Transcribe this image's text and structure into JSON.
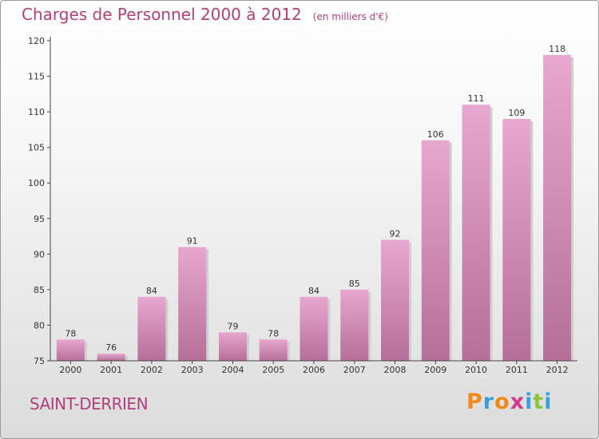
{
  "title": "Charges de Personnel 2000 à 2012",
  "subtitle": "(en milliers d'€)",
  "place": "SAINT-DERRIEN",
  "logo": {
    "letters": [
      "P",
      "r",
      "o",
      "x",
      "i",
      "t",
      "i"
    ],
    "colors": [
      "#f08a1c",
      "#3aa0dd",
      "#f08a1c",
      "#d23a8f",
      "#3aa0dd",
      "#8cc63e",
      "#3aa0dd"
    ]
  },
  "colors": {
    "bar_top": "#e8a7cf",
    "bar_bottom": "#b56f98",
    "title": "#b0407a"
  },
  "chart_data": {
    "type": "bar",
    "title": "Charges de Personnel 2000 à 2012",
    "subtitle": "(en milliers d'€)",
    "categories": [
      "2000",
      "2001",
      "2002",
      "2003",
      "2004",
      "2005",
      "2006",
      "2007",
      "2008",
      "2009",
      "2010",
      "2011",
      "2012"
    ],
    "values": [
      78,
      76,
      84,
      91,
      79,
      78,
      84,
      85,
      92,
      106,
      111,
      109,
      118
    ],
    "ylim": [
      75,
      120
    ],
    "yticks": [
      75,
      80,
      85,
      90,
      95,
      100,
      105,
      110,
      115,
      120
    ],
    "grid": false,
    "legend": "none"
  }
}
